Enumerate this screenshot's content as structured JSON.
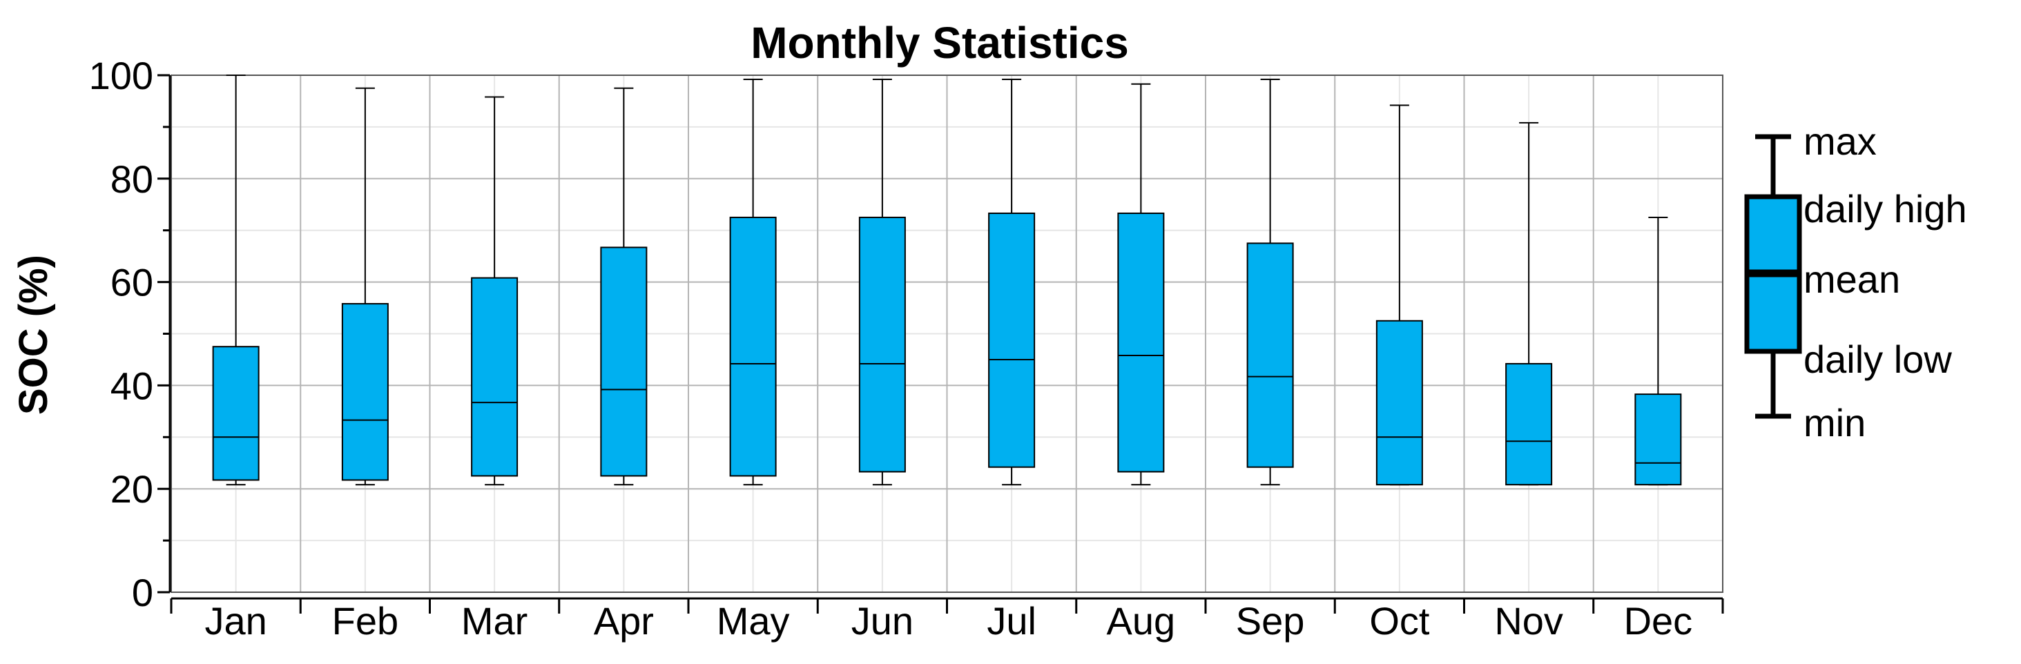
{
  "chart_data": {
    "type": "box",
    "title": "Monthly Statistics",
    "xlabel": "",
    "ylabel": "SOC (%)",
    "ylim": [
      0,
      100
    ],
    "yticks": [
      0,
      20,
      40,
      60,
      80,
      100
    ],
    "grid": true,
    "legend_position": "right",
    "box_color": "#00b0f0",
    "categories": [
      "Jan",
      "Feb",
      "Mar",
      "Apr",
      "May",
      "Jun",
      "Jul",
      "Aug",
      "Sep",
      "Oct",
      "Nov",
      "Dec"
    ],
    "max": [
      100,
      97.5,
      95.8,
      97.5,
      99.2,
      99.2,
      99.2,
      98.3,
      99.2,
      94.2,
      90.8,
      72.5
    ],
    "daily_high": [
      47.5,
      55.8,
      60.8,
      66.7,
      72.5,
      72.5,
      73.3,
      73.3,
      67.5,
      52.5,
      44.2,
      38.3
    ],
    "mean": [
      30,
      33.3,
      36.7,
      39.2,
      44.2,
      44.2,
      45,
      45.8,
      41.7,
      30,
      29.2,
      25
    ],
    "daily_low": [
      21.7,
      21.7,
      22.5,
      22.5,
      22.5,
      23.3,
      24.2,
      23.3,
      24.2,
      20.8,
      20.8,
      20.8
    ],
    "min": [
      20.8,
      20.8,
      20.8,
      20.8,
      20.8,
      20.8,
      20.8,
      20.8,
      20.8,
      20.8,
      20.8,
      20.8
    ],
    "legend": {
      "max": "max",
      "daily_high": "daily high",
      "mean": "mean",
      "daily_low": "daily low",
      "min": "min"
    }
  }
}
